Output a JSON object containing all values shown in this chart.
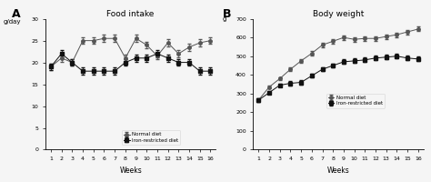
{
  "weeks": [
    1,
    2,
    3,
    4,
    5,
    6,
    7,
    8,
    9,
    10,
    11,
    12,
    13,
    14,
    15,
    16
  ],
  "food_normal": [
    19,
    21,
    20,
    25,
    25,
    25.5,
    25.5,
    21,
    25.5,
    24,
    21.5,
    24.5,
    22,
    23.5,
    24.5,
    25
  ],
  "food_normal_err": [
    0.8,
    0.8,
    0.8,
    0.8,
    0.8,
    0.8,
    0.8,
    0.8,
    0.8,
    0.8,
    0.8,
    0.8,
    0.8,
    0.8,
    0.8,
    0.8
  ],
  "food_iron": [
    19,
    22,
    20,
    18,
    18,
    18,
    18,
    20,
    21,
    21,
    22,
    21,
    20,
    20,
    18,
    18
  ],
  "food_iron_err": [
    0.8,
    0.8,
    0.8,
    0.8,
    0.8,
    0.8,
    0.8,
    0.8,
    0.8,
    0.8,
    0.8,
    0.8,
    0.8,
    0.8,
    0.8,
    0.8
  ],
  "weight_normal": [
    265,
    335,
    380,
    430,
    475,
    515,
    560,
    580,
    600,
    590,
    595,
    595,
    605,
    615,
    630,
    645
  ],
  "weight_normal_err": [
    8,
    8,
    8,
    10,
    10,
    12,
    12,
    12,
    12,
    12,
    12,
    12,
    12,
    12,
    12,
    12
  ],
  "weight_iron": [
    265,
    305,
    345,
    355,
    360,
    395,
    430,
    450,
    470,
    475,
    480,
    490,
    495,
    500,
    490,
    485
  ],
  "weight_iron_err": [
    8,
    8,
    8,
    10,
    10,
    10,
    10,
    10,
    12,
    12,
    12,
    12,
    12,
    12,
    12,
    12
  ],
  "panel_A_label": "A",
  "panel_B_label": "B",
  "title_A": "Food intake",
  "title_B": "Body weight",
  "ylabel_A": "g/day",
  "ylabel_B": "g",
  "xlabel": "Weeks",
  "ylim_A": [
    0,
    30
  ],
  "ylim_B": [
    0,
    700
  ],
  "yticks_A": [
    0,
    5,
    10,
    15,
    20,
    25,
    30
  ],
  "yticks_B": [
    0,
    100,
    200,
    300,
    400,
    500,
    600,
    700
  ],
  "legend_normal": "Normal diet",
  "legend_iron": "Iron-restricted diet",
  "color_normal": "#555555",
  "color_iron": "#111111",
  "marker_normal": "o",
  "marker_iron": "s",
  "bg_color": "#f5f5f5"
}
